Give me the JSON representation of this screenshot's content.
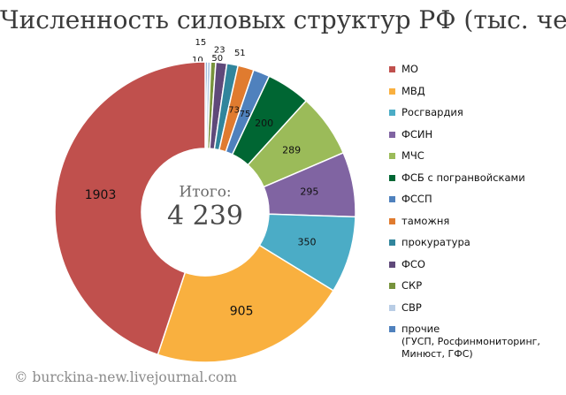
{
  "title": "Численность силовых структур РФ (тыс. чел)",
  "watermark": "© burckina-new.livejournal.com",
  "center": {
    "label": "Итого:",
    "value": "4 239"
  },
  "legend_note": "(ГУСП, Росфинмониторинг,\nМинюст, ГФС)",
  "chart_data": {
    "type": "pie",
    "title": "Численность силовых структур РФ (тыс. чел)",
    "donut": true,
    "total_label": "4 239",
    "legend_position": "right",
    "series": [
      {
        "name": "МО",
        "value": 1903,
        "color": "#c0504d"
      },
      {
        "name": "МВД",
        "value": 905,
        "color": "#f9b03f"
      },
      {
        "name": "Росгвардия",
        "value": 350,
        "color": "#4bacc6"
      },
      {
        "name": "ФСИН",
        "value": 295,
        "color": "#8064a2"
      },
      {
        "name": "МЧС",
        "value": 289,
        "color": "#9bbb59"
      },
      {
        "name": "ФСБ с погранвойсками",
        "value": 200,
        "color": "#006633"
      },
      {
        "name": "ФССП",
        "value": 75,
        "color": "#4f81bd"
      },
      {
        "name": "таможня",
        "value": 73,
        "color": "#e07b2f"
      },
      {
        "name": "прокуратура",
        "value": 51,
        "color": "#31859c"
      },
      {
        "name": "ФСО",
        "value": 50,
        "color": "#5f497a"
      },
      {
        "name": "СКР",
        "value": 23,
        "color": "#77933c"
      },
      {
        "name": "СВР",
        "value": 15,
        "color": "#b9cde5"
      },
      {
        "name": "прочие",
        "value": 10,
        "color": "#4f81bd"
      }
    ]
  }
}
